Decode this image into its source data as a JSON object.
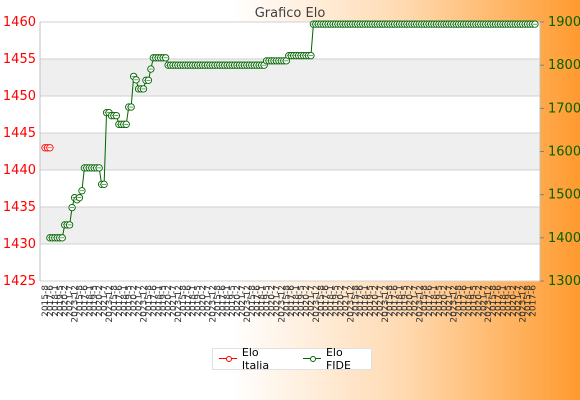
{
  "chart_data": {
    "type": "line",
    "title": "Grafico Elo",
    "left_axis": {
      "ticks": [
        1425,
        1430,
        1435,
        1440,
        1445,
        1450,
        1455,
        1460
      ],
      "min": 1425,
      "max": 1460,
      "color": "#ff0000"
    },
    "right_axis": {
      "ticks": [
        1300,
        1400,
        1500,
        1600,
        1700,
        1800,
        1900
      ],
      "min": 1300,
      "max": 1900,
      "color": "#006400"
    },
    "x_label_texts": [
      "2015-8",
      "2017-6",
      "2018-1",
      "2019-5",
      "2020-2",
      "2021-7",
      "2023-12"
    ],
    "grid": true,
    "legend_position": "bottom",
    "series": [
      {
        "name": "Elo Italia",
        "color": "#ff0000",
        "axis": "left",
        "points": [
          [
            0,
            1443
          ],
          [
            1,
            1443
          ],
          [
            2,
            1443
          ]
        ]
      },
      {
        "name": "Elo FIDE",
        "color": "#006400",
        "axis": "right",
        "points": [
          [
            2,
            1400
          ],
          [
            3,
            1400
          ],
          [
            4,
            1400
          ],
          [
            5,
            1400
          ],
          [
            6,
            1400
          ],
          [
            7,
            1400
          ],
          [
            8,
            1430
          ],
          [
            9,
            1430
          ],
          [
            10,
            1430
          ],
          [
            11,
            1470
          ],
          [
            12,
            1493
          ],
          [
            13,
            1488
          ],
          [
            14,
            1493
          ],
          [
            15,
            1509
          ],
          [
            16,
            1562
          ],
          [
            17,
            1562
          ],
          [
            18,
            1562
          ],
          [
            19,
            1562
          ],
          [
            20,
            1562
          ],
          [
            21,
            1562
          ],
          [
            22,
            1562
          ],
          [
            23,
            1524
          ],
          [
            24,
            1524
          ],
          [
            25,
            1690
          ],
          [
            26,
            1690
          ],
          [
            27,
            1683
          ],
          [
            28,
            1683
          ],
          [
            29,
            1683
          ],
          [
            30,
            1663
          ],
          [
            31,
            1663
          ],
          [
            32,
            1663
          ],
          [
            33,
            1663
          ],
          [
            34,
            1703
          ],
          [
            35,
            1703
          ],
          [
            36,
            1774
          ],
          [
            37,
            1766
          ],
          [
            38,
            1745
          ],
          [
            39,
            1745
          ],
          [
            40,
            1745
          ],
          [
            41,
            1765
          ],
          [
            42,
            1765
          ],
          [
            43,
            1791
          ],
          [
            44,
            1817
          ],
          [
            45,
            1817
          ],
          [
            46,
            1817
          ],
          [
            47,
            1817
          ],
          [
            48,
            1817
          ],
          [
            49,
            1817
          ],
          [
            50,
            1800
          ],
          [
            51,
            1800
          ],
          [
            52,
            1800
          ],
          [
            53,
            1800
          ],
          [
            54,
            1800
          ],
          [
            55,
            1800
          ],
          [
            56,
            1800
          ],
          [
            57,
            1800
          ],
          [
            58,
            1800
          ],
          [
            59,
            1800
          ],
          [
            60,
            1800
          ],
          [
            61,
            1800
          ],
          [
            62,
            1800
          ],
          [
            63,
            1800
          ],
          [
            64,
            1800
          ],
          [
            65,
            1800
          ],
          [
            66,
            1800
          ],
          [
            67,
            1800
          ],
          [
            68,
            1800
          ],
          [
            69,
            1800
          ],
          [
            70,
            1800
          ],
          [
            71,
            1800
          ],
          [
            72,
            1800
          ],
          [
            73,
            1800
          ],
          [
            74,
            1800
          ],
          [
            75,
            1800
          ],
          [
            76,
            1800
          ],
          [
            77,
            1800
          ],
          [
            78,
            1800
          ],
          [
            79,
            1800
          ],
          [
            80,
            1800
          ],
          [
            81,
            1800
          ],
          [
            82,
            1800
          ],
          [
            83,
            1800
          ],
          [
            84,
            1800
          ],
          [
            85,
            1800
          ],
          [
            86,
            1800
          ],
          [
            87,
            1800
          ],
          [
            88,
            1800
          ],
          [
            89,
            1800
          ],
          [
            90,
            1810
          ],
          [
            91,
            1810
          ],
          [
            92,
            1810
          ],
          [
            93,
            1810
          ],
          [
            94,
            1810
          ],
          [
            95,
            1810
          ],
          [
            96,
            1810
          ],
          [
            97,
            1810
          ],
          [
            98,
            1810
          ],
          [
            99,
            1822
          ],
          [
            100,
            1822
          ],
          [
            101,
            1822
          ],
          [
            102,
            1822
          ],
          [
            103,
            1822
          ],
          [
            104,
            1822
          ],
          [
            105,
            1822
          ],
          [
            106,
            1822
          ],
          [
            107,
            1822
          ],
          [
            108,
            1822
          ],
          [
            109,
            1895
          ],
          [
            110,
            1895
          ],
          [
            111,
            1895
          ],
          [
            112,
            1895
          ],
          [
            113,
            1895
          ],
          [
            114,
            1895
          ],
          [
            115,
            1895
          ],
          [
            116,
            1895
          ],
          [
            117,
            1895
          ],
          [
            118,
            1895
          ],
          [
            119,
            1895
          ],
          [
            120,
            1895
          ],
          [
            121,
            1895
          ],
          [
            122,
            1895
          ],
          [
            123,
            1895
          ],
          [
            124,
            1895
          ],
          [
            125,
            1895
          ],
          [
            126,
            1895
          ],
          [
            127,
            1895
          ],
          [
            128,
            1895
          ],
          [
            129,
            1895
          ],
          [
            130,
            1895
          ],
          [
            131,
            1895
          ],
          [
            132,
            1895
          ],
          [
            133,
            1895
          ],
          [
            134,
            1895
          ],
          [
            135,
            1895
          ],
          [
            136,
            1895
          ],
          [
            137,
            1895
          ],
          [
            138,
            1895
          ],
          [
            139,
            1895
          ],
          [
            140,
            1895
          ],
          [
            141,
            1895
          ],
          [
            142,
            1895
          ],
          [
            143,
            1895
          ],
          [
            144,
            1895
          ],
          [
            145,
            1895
          ],
          [
            146,
            1895
          ],
          [
            147,
            1895
          ],
          [
            148,
            1895
          ],
          [
            149,
            1895
          ],
          [
            150,
            1895
          ],
          [
            151,
            1895
          ],
          [
            152,
            1895
          ],
          [
            153,
            1895
          ],
          [
            154,
            1895
          ],
          [
            155,
            1895
          ],
          [
            156,
            1895
          ],
          [
            157,
            1895
          ],
          [
            158,
            1895
          ],
          [
            159,
            1895
          ],
          [
            160,
            1895
          ],
          [
            161,
            1895
          ],
          [
            162,
            1895
          ],
          [
            163,
            1895
          ],
          [
            164,
            1895
          ],
          [
            165,
            1895
          ],
          [
            166,
            1895
          ],
          [
            167,
            1895
          ],
          [
            168,
            1895
          ],
          [
            169,
            1895
          ],
          [
            170,
            1895
          ],
          [
            171,
            1895
          ],
          [
            172,
            1895
          ],
          [
            173,
            1895
          ],
          [
            174,
            1895
          ],
          [
            175,
            1895
          ],
          [
            176,
            1895
          ],
          [
            177,
            1895
          ],
          [
            178,
            1895
          ],
          [
            179,
            1895
          ],
          [
            180,
            1895
          ],
          [
            181,
            1895
          ],
          [
            182,
            1895
          ],
          [
            183,
            1895
          ],
          [
            184,
            1895
          ],
          [
            185,
            1895
          ],
          [
            186,
            1895
          ],
          [
            187,
            1895
          ],
          [
            188,
            1895
          ],
          [
            189,
            1895
          ],
          [
            190,
            1895
          ],
          [
            191,
            1895
          ],
          [
            192,
            1895
          ],
          [
            193,
            1895
          ],
          [
            194,
            1895
          ],
          [
            195,
            1895
          ],
          [
            196,
            1895
          ],
          [
            197,
            1895
          ],
          [
            198,
            1895
          ],
          [
            199,
            1895
          ]
        ]
      }
    ],
    "x_count": 200
  }
}
